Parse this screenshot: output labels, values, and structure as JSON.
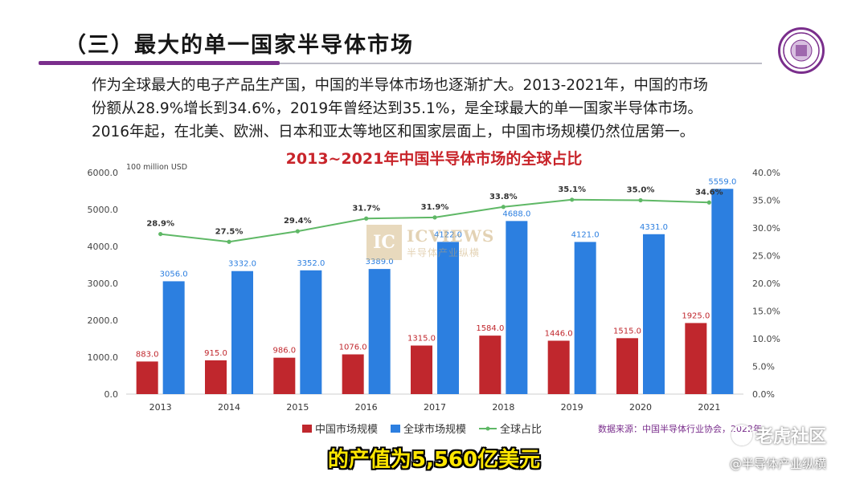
{
  "slide": {
    "title": "（三）最大的单一国家半导体市场",
    "intro_lines": [
      "作为全球最大的电子产品生产国，中国的半导体市场也逐渐扩大。2013-2021年，中国的市场",
      "份额从28.9%增长到34.6%，2019年曾经达到35.1%，是全球最大的单一国家半导体市场。",
      "2016年起，在北美、欧洲、日本和亚太等地区和国家层面上，中国市场规模仍然位居第一。"
    ],
    "seal_icon": "university-seal-icon"
  },
  "chart_data": {
    "type": "bar",
    "title": "2013~2021年中国半导体市场的全球占比",
    "unit_label": "100 million USD",
    "categories": [
      "2013",
      "2014",
      "2015",
      "2016",
      "2017",
      "2018",
      "2019",
      "2020",
      "2021"
    ],
    "series": [
      {
        "name": "中国市场规模",
        "type": "bar",
        "axis": "left",
        "color": "#c0272d",
        "values": [
          883.0,
          915.0,
          986.0,
          1076.0,
          1315.0,
          1584.0,
          1446.0,
          1515.0,
          1925.0
        ],
        "labels": [
          "883.0",
          "915.0",
          "986.0",
          "1076.0",
          "1315.0",
          "1584.0",
          "1446.0",
          "1515.0",
          "1925.0"
        ]
      },
      {
        "name": "全球市场规模",
        "type": "bar",
        "axis": "left",
        "color": "#2c7fe0",
        "values": [
          3056.0,
          3332.0,
          3352.0,
          3389.0,
          4122.0,
          4688.0,
          4121.0,
          4331.0,
          5559.0
        ],
        "labels": [
          "3056.0",
          "3332.0",
          "3352.0",
          "3389.0",
          "4122.0",
          "4688.0",
          "4121.0",
          "4331.0",
          "5559.0"
        ]
      },
      {
        "name": "全球占比",
        "type": "line",
        "axis": "right",
        "color": "#5fb866",
        "values": [
          28.9,
          27.5,
          29.4,
          31.7,
          31.9,
          33.8,
          35.1,
          35.0,
          34.6
        ],
        "labels": [
          "28.9%",
          "27.5%",
          "29.4%",
          "31.7%",
          "31.9%",
          "33.8%",
          "35.1%",
          "35.0%",
          "34.6%"
        ]
      }
    ],
    "y_left": {
      "min": 0,
      "max": 6000,
      "ticks": [
        "0.0",
        "1000.0",
        "2000.0",
        "3000.0",
        "4000.0",
        "5000.0",
        "6000.0"
      ]
    },
    "y_right": {
      "min": 0,
      "max": 40,
      "ticks": [
        "0.0%",
        "5.0%",
        "10.0%",
        "15.0%",
        "20.0%",
        "25.0%",
        "30.0%",
        "35.0%",
        "40.0%"
      ]
    },
    "grid": false,
    "legend_position": "bottom",
    "source": "数据来源：中国半导体行业协会，2022年"
  },
  "watermark": {
    "box": "IC",
    "line1": "ICVIEWS",
    "line2": "半导体产业纵横"
  },
  "video": {
    "subtitle": "的产值为5,560亿美元",
    "brand": "老虎社区",
    "brand_icon": "tiger-community-icon",
    "account": "@半导体产业纵横"
  }
}
